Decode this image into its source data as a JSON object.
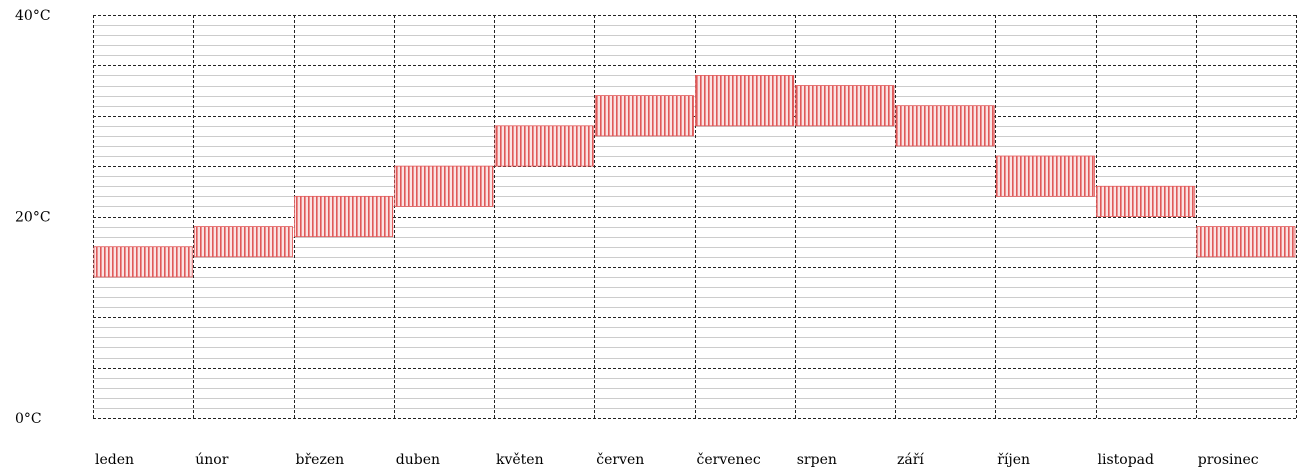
{
  "chart_data": {
    "type": "bar",
    "subtype": "floating range",
    "categories": [
      "leden",
      "únor",
      "březen",
      "duben",
      "květen",
      "červen",
      "červenec",
      "srpen",
      "září",
      "říjen",
      "listopad",
      "prosinec"
    ],
    "ranges": [
      [
        14,
        17
      ],
      [
        16,
        19
      ],
      [
        18,
        22
      ],
      [
        21,
        25
      ],
      [
        25,
        29
      ],
      [
        28,
        32
      ],
      [
        29,
        34
      ],
      [
        29,
        33
      ],
      [
        27,
        31
      ],
      [
        22,
        26
      ],
      [
        20,
        23
      ],
      [
        16,
        19
      ]
    ],
    "ylim": [
      0,
      40
    ],
    "y_tick_values": [
      0,
      20,
      40
    ],
    "y_tick_labels": [
      "0°C",
      "20°C",
      "40°C"
    ],
    "grid": true,
    "bar_color": "#e05a5a",
    "grid_color": "#000000"
  }
}
